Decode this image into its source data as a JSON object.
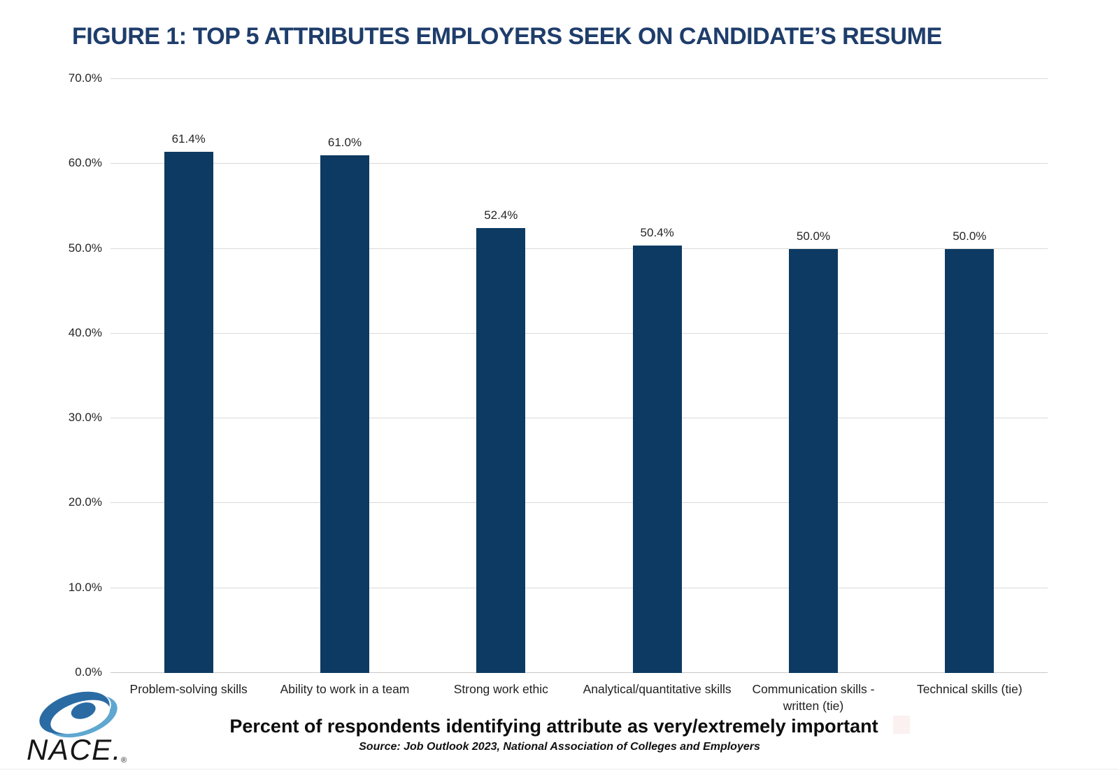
{
  "chart_data": {
    "type": "bar",
    "title": "FIGURE 1: TOP 5 ATTRIBUTES EMPLOYERS SEEK ON CANDIDATE’S RESUME",
    "categories": [
      "Problem-solving skills",
      "Ability to work in a team",
      "Strong work ethic",
      "Analytical/quantitative skills",
      "Communication skills - written (tie)",
      "Technical skills (tie)"
    ],
    "values": [
      61.4,
      61.0,
      52.4,
      50.4,
      50.0,
      50.0
    ],
    "value_labels": [
      "61.4%",
      "61.0%",
      "52.4%",
      "50.4%",
      "50.0%",
      "50.0%"
    ],
    "xlabel": "Percent of respondents identifying attribute as very/extremely important",
    "ylabel": "",
    "ylim": [
      0,
      70
    ],
    "ytick_labels": [
      "70.0%",
      "60.0%",
      "50.0%",
      "40.0%",
      "30.0%",
      "20.0%",
      "10.0%",
      "0.0%"
    ],
    "grid": true,
    "legend": "none",
    "bar_color": "#0d3a62",
    "source_note": "Source: Job Outlook 2023, National Association of Colleges and Employers"
  },
  "footer": {
    "logo_text": "NACE.",
    "registered_mark": "®"
  },
  "colors": {
    "title": "#1e3d6b",
    "bar": "#0d3a62",
    "grid": "#d9d9d9",
    "logo_dark_blue": "#2b6ba3",
    "logo_light_blue": "#5fa7d1"
  }
}
